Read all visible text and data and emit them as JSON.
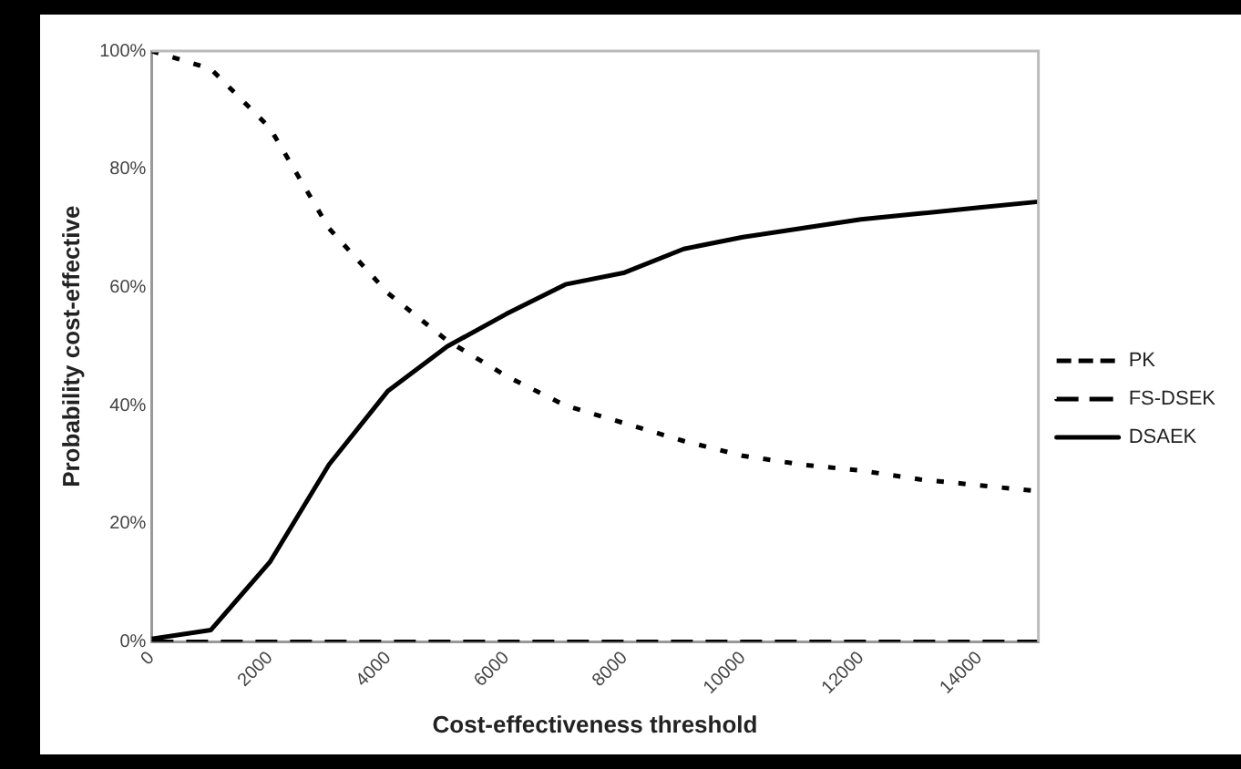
{
  "chart_data": {
    "type": "line",
    "xlabel": "Cost-effectiveness threshold",
    "ylabel": "Probability cost-effective",
    "x": [
      0,
      1000,
      2000,
      3000,
      4000,
      5000,
      6000,
      7000,
      8000,
      9000,
      10000,
      11000,
      12000,
      13000,
      14000,
      15000
    ],
    "series": [
      {
        "name": "PK",
        "color": "#000000",
        "line_style": "dotted",
        "values": [
          100,
          97,
          87,
          70,
          59,
          51,
          45,
          40,
          37,
          34,
          31.5,
          30,
          29,
          27.5,
          26.5,
          25.5
        ]
      },
      {
        "name": "FS-DSEK",
        "color": "#000000",
        "line_style": "dashed",
        "values": [
          0,
          0,
          0,
          0,
          0,
          0,
          0,
          0,
          0,
          0,
          0,
          0,
          0,
          0,
          0,
          0
        ]
      },
      {
        "name": "DSAEK",
        "color": "#000000",
        "line_style": "solid",
        "values": [
          0.5,
          2,
          13.5,
          30,
          42.5,
          50,
          55.5,
          60.5,
          62.5,
          66.5,
          68.5,
          70,
          71.5,
          72.5,
          73.5,
          74.5
        ]
      }
    ],
    "xlim": [
      0,
      15000
    ],
    "xticks": [
      0,
      2000,
      4000,
      6000,
      8000,
      10000,
      12000,
      14000
    ],
    "ylim": [
      0,
      100
    ],
    "yticks": [
      {
        "value": 0,
        "label": "0%"
      },
      {
        "value": 20,
        "label": "20%"
      },
      {
        "value": 40,
        "label": "40%"
      },
      {
        "value": 60,
        "label": "60%"
      },
      {
        "value": 80,
        "label": "80%"
      },
      {
        "value": 100,
        "label": "100%"
      }
    ],
    "grid": false,
    "legend": "right",
    "marker": "none"
  }
}
